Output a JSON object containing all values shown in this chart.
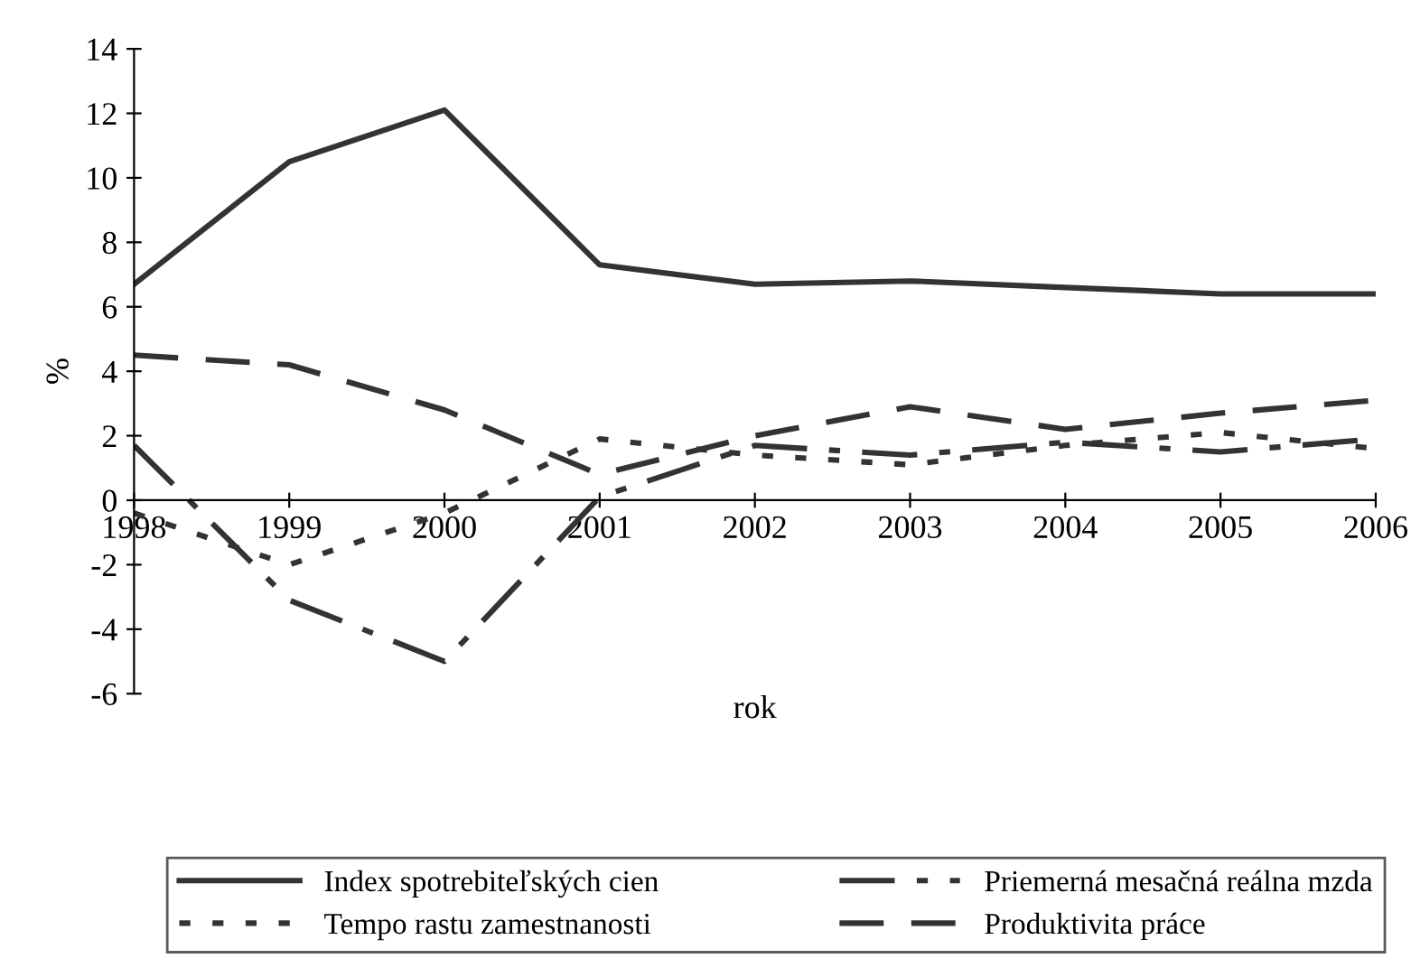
{
  "chart_data": {
    "type": "line",
    "xlabel": "rok",
    "ylabel": "%",
    "categories": [
      "1998",
      "1999",
      "2000",
      "2001",
      "2002",
      "2003",
      "2004",
      "2005",
      "2006"
    ],
    "ylim": [
      -6,
      14
    ],
    "yticks": [
      -6,
      -4,
      -2,
      0,
      2,
      4,
      6,
      8,
      10,
      12,
      14
    ],
    "grid": false,
    "legend": "bottom",
    "marker": "none",
    "series": [
      {
        "name": "Index spotrebiteľských cien",
        "color": "#333333",
        "line_style": "solid",
        "values": [
          6.7,
          10.5,
          12.1,
          7.3,
          6.7,
          6.8,
          6.6,
          6.4,
          6.4
        ]
      },
      {
        "name": "Priemerná mesačná reálna mzda",
        "color": "#333333",
        "line_style": "dashdot",
        "values": [
          1.7,
          -3.1,
          -5.0,
          0.1,
          1.7,
          1.4,
          1.8,
          1.5,
          1.9
        ]
      },
      {
        "name": "Tempo rastu zamestnanosti",
        "color": "#333333",
        "line_style": "dotted",
        "values": [
          -0.4,
          -2.0,
          -0.4,
          1.9,
          1.4,
          1.1,
          1.7,
          2.1,
          1.6
        ]
      },
      {
        "name": "Produktivita práce",
        "color": "#333333",
        "line_style": "dashed",
        "values": [
          4.5,
          4.2,
          2.8,
          0.8,
          2.0,
          2.9,
          2.2,
          2.7,
          3.1
        ]
      }
    ]
  }
}
